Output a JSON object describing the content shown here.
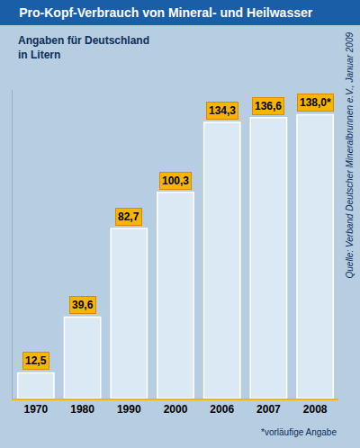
{
  "chart_data": {
    "type": "bar",
    "title": "Pro-Kopf-Verbrauch von Mineral- und Heilwasser",
    "subtitle": "Angaben für Deutschland\nin Litern",
    "categories": [
      "1970",
      "1980",
      "1990",
      "2000",
      "2006",
      "2007",
      "2008"
    ],
    "values": [
      12.5,
      39.6,
      82.7,
      100.3,
      134.3,
      136.6,
      138.0
    ],
    "value_labels": [
      "12,5",
      "39,6",
      "82,7",
      "100,3",
      "134,3",
      "136,6",
      "138,0*"
    ],
    "color": "#dbe9f5",
    "ylim": [
      0,
      150
    ],
    "grid": false,
    "data_labels": true,
    "tick_labels": "x",
    "annotations": [
      "Quelle: Verband Deutscher Mineralbrunnen e.V., Januar 2009",
      "*vorläufige Angabe"
    ]
  }
}
